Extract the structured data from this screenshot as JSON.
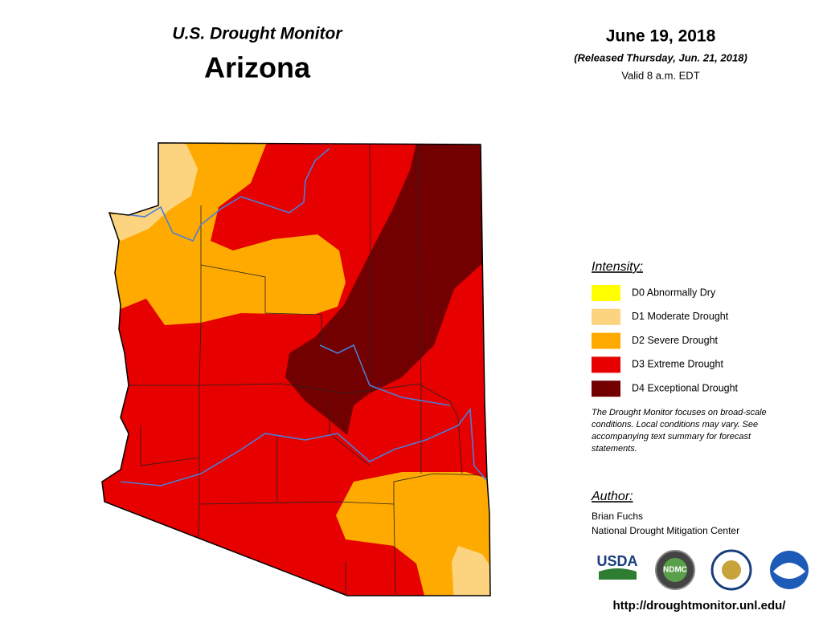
{
  "header": {
    "subtitle": "U.S. Drought Monitor",
    "title": "Arizona"
  },
  "date": {
    "date": "June 19, 2018",
    "released": "(Released Thursday, Jun. 21, 2018)",
    "valid": "Valid 8 a.m. EDT"
  },
  "legend": {
    "title": "Intensity:",
    "items": [
      {
        "label": "D0 Abnormally Dry",
        "color": "#ffff00"
      },
      {
        "label": "D1 Moderate Drought",
        "color": "#fcd37f"
      },
      {
        "label": "D2 Severe Drought",
        "color": "#ffaa00"
      },
      {
        "label": "D3 Extreme Drought",
        "color": "#e60000"
      },
      {
        "label": "D4 Exceptional Drought",
        "color": "#730000"
      }
    ]
  },
  "note": [
    "The Drought Monitor focuses on broad-scale",
    "conditions. Local conditions may vary. See",
    "accompanying text summary for forecast",
    "statements."
  ],
  "author": {
    "title": "Author:",
    "lines": [
      "Brian Fuchs",
      "National Drought Mitigation Center"
    ]
  },
  "logos": [
    "USDA",
    "NDMC"
  ],
  "url": "http://droughtmonitor.unl.edu/"
}
